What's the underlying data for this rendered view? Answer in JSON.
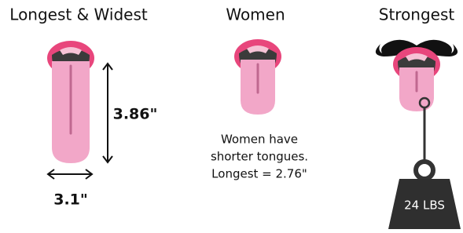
{
  "panels": [
    {
      "title": "Longest & Widest",
      "height_label": "3.86\"",
      "width_label": "3.1\""
    },
    {
      "title": "Women",
      "caption": [
        "Women have",
        "shorter tongues.",
        "Longest = 2.76\""
      ]
    },
    {
      "title": "Strongest",
      "weight_label": "24 LBS"
    }
  ]
}
